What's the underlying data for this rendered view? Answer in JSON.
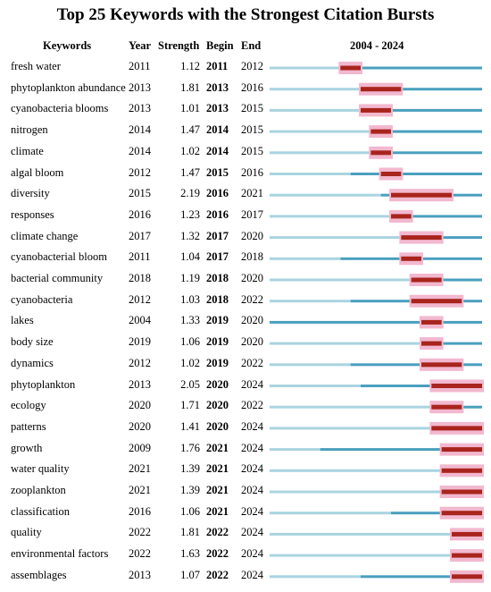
{
  "title": "Top 25 Keywords with the Strongest Citation Bursts",
  "headers": {
    "keywords": "Keywords",
    "year": "Year",
    "strength": "Strength",
    "begin": "Begin",
    "end": "End",
    "range": "2004 - 2024"
  },
  "colors": {
    "timeline_before": "#a9d4e0",
    "timeline_active": "#4a9fbf",
    "burst": "#a8241c",
    "burst_glow": "#f2b8cf"
  },
  "chart_data": {
    "type": "table",
    "timeline_start": 2004,
    "timeline_end": 2024,
    "rows": [
      {
        "keyword": "fresh water",
        "year": "2011",
        "strength": "1.12",
        "begin": "2011",
        "end": "2012"
      },
      {
        "keyword": "phytoplankton abundance",
        "year": "2013",
        "strength": "1.81",
        "begin": "2013",
        "end": "2016"
      },
      {
        "keyword": "cyanobacteria blooms",
        "year": "2013",
        "strength": "1.01",
        "begin": "2013",
        "end": "2015"
      },
      {
        "keyword": "nitrogen",
        "year": "2014",
        "strength": "1.47",
        "begin": "2014",
        "end": "2015"
      },
      {
        "keyword": "climate",
        "year": "2014",
        "strength": "1.02",
        "begin": "2014",
        "end": "2015"
      },
      {
        "keyword": "algal bloom",
        "year": "2012",
        "strength": "1.47",
        "begin": "2015",
        "end": "2016"
      },
      {
        "keyword": "diversity",
        "year": "2015",
        "strength": "2.19",
        "begin": "2016",
        "end": "2021"
      },
      {
        "keyword": "responses",
        "year": "2016",
        "strength": "1.23",
        "begin": "2016",
        "end": "2017"
      },
      {
        "keyword": "climate change",
        "year": "2017",
        "strength": "1.32",
        "begin": "2017",
        "end": "2020"
      },
      {
        "keyword": "cyanobacterial bloom",
        "year": "2011",
        "strength": "1.04",
        "begin": "2017",
        "end": "2018"
      },
      {
        "keyword": "bacterial community",
        "year": "2018",
        "strength": "1.19",
        "begin": "2018",
        "end": "2020"
      },
      {
        "keyword": "cyanobacteria",
        "year": "2012",
        "strength": "1.03",
        "begin": "2018",
        "end": "2022"
      },
      {
        "keyword": "lakes",
        "year": "2004",
        "strength": "1.33",
        "begin": "2019",
        "end": "2020"
      },
      {
        "keyword": "body size",
        "year": "2019",
        "strength": "1.06",
        "begin": "2019",
        "end": "2020"
      },
      {
        "keyword": "dynamics",
        "year": "2012",
        "strength": "1.02",
        "begin": "2019",
        "end": "2022"
      },
      {
        "keyword": "phytoplankton",
        "year": "2013",
        "strength": "2.05",
        "begin": "2020",
        "end": "2024"
      },
      {
        "keyword": "ecology",
        "year": "2020",
        "strength": "1.71",
        "begin": "2020",
        "end": "2022"
      },
      {
        "keyword": "patterns",
        "year": "2020",
        "strength": "1.41",
        "begin": "2020",
        "end": "2024"
      },
      {
        "keyword": "growth",
        "year": "2009",
        "strength": "1.76",
        "begin": "2021",
        "end": "2024"
      },
      {
        "keyword": "water quality",
        "year": "2021",
        "strength": "1.39",
        "begin": "2021",
        "end": "2024"
      },
      {
        "keyword": "zooplankton",
        "year": "2021",
        "strength": "1.39",
        "begin": "2021",
        "end": "2024"
      },
      {
        "keyword": "classification",
        "year": "2016",
        "strength": "1.06",
        "begin": "2021",
        "end": "2024"
      },
      {
        "keyword": "quality",
        "year": "2022",
        "strength": "1.81",
        "begin": "2022",
        "end": "2024"
      },
      {
        "keyword": "environmental factors",
        "year": "2022",
        "strength": "1.63",
        "begin": "2022",
        "end": "2024"
      },
      {
        "keyword": "assemblages",
        "year": "2013",
        "strength": "1.07",
        "begin": "2022",
        "end": "2024"
      }
    ]
  }
}
